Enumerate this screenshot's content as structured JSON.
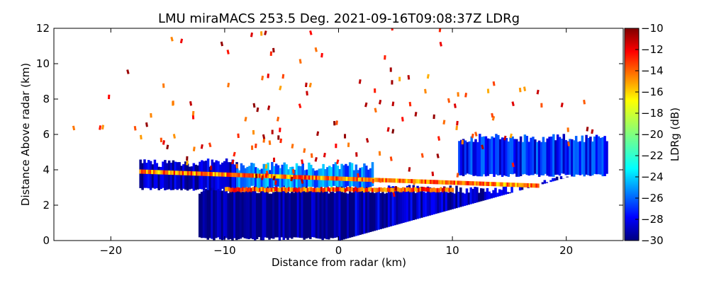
{
  "chart_data": {
    "type": "heatmap",
    "title": "LMU miraMACS 253.5 Deg. 2021-09-16T09:08:37Z  LDRg",
    "xlabel": "Distance from radar (km)",
    "ylabel": "Distance Above radar  (km)",
    "xlim": [
      -25,
      25
    ],
    "ylim": [
      0,
      12
    ],
    "x_ticks": [
      -20,
      -10,
      0,
      10,
      20
    ],
    "x_tick_labels": [
      "−20",
      "−10",
      "0",
      "10",
      "20"
    ],
    "y_ticks": [
      0,
      2,
      4,
      6,
      8,
      10,
      12
    ],
    "y_tick_labels": [
      "0",
      "2",
      "4",
      "6",
      "8",
      "10",
      "12"
    ],
    "colorbar": {
      "label": "LDRg (dB)",
      "range": [
        -30,
        -10
      ],
      "ticks": [
        -10,
        -12,
        -14,
        -16,
        -18,
        -20,
        -22,
        -24,
        -26,
        -28,
        -30
      ],
      "tick_labels": [
        "−10",
        "−12",
        "−14",
        "−16",
        "−18",
        "−20",
        "−22",
        "−24",
        "−26",
        "−28",
        "−30"
      ],
      "colormap": "jet"
    },
    "grid": false,
    "regions": [
      {
        "x": [
          -12.3,
          0
        ],
        "y": [
          0,
          2.9
        ],
        "ldr": -30
      },
      {
        "x": [
          0,
          23.5
        ],
        "y_bottom_at_ends": [
          0,
          4.2
        ],
        "y_top": 2.9,
        "ldr": -29
      },
      {
        "x": [
          -17.5,
          -9
        ],
        "y": [
          2.8,
          4.4
        ],
        "ldr": -29
      },
      {
        "x": [
          -9,
          3
        ],
        "y": [
          2.9,
          4.2
        ],
        "ldr": -25
      },
      {
        "x": [
          10.5,
          23.5
        ],
        "y": [
          3.6,
          5.8
        ],
        "ldr": -27
      }
    ],
    "bands": [
      {
        "name": "bright band",
        "x": [
          -17.5,
          17.5
        ],
        "y_at_ends": [
          3.9,
          3.1
        ],
        "ldr": -15
      },
      {
        "name": "melting layer",
        "x": [
          -10,
          10
        ],
        "y": [
          2.75,
          3.0
        ],
        "ldr": -14
      }
    ]
  }
}
